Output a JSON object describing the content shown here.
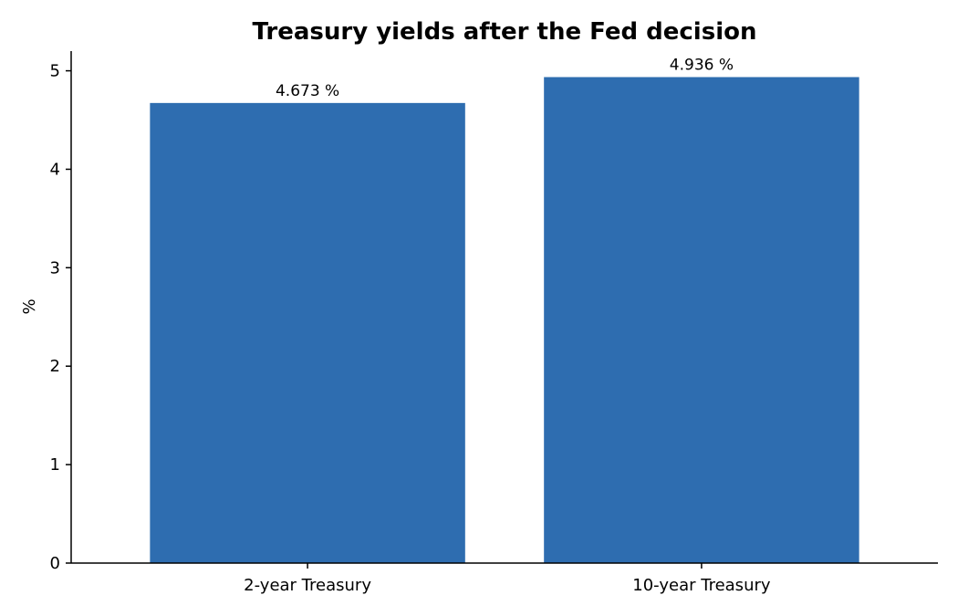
{
  "chart_data": {
    "type": "bar",
    "title": "Treasury yields after the Fed decision",
    "xlabel": "",
    "ylabel": "%",
    "categories": [
      "2-year Treasury",
      "10-year Treasury"
    ],
    "values": [
      4.673,
      4.936
    ],
    "data_labels": [
      "4.673 %",
      "4.936 %"
    ],
    "ylim": [
      0,
      5.2
    ],
    "yticks": [
      0,
      1,
      2,
      3,
      4,
      5
    ],
    "grid": false,
    "bar_color": "#2e6db0"
  }
}
